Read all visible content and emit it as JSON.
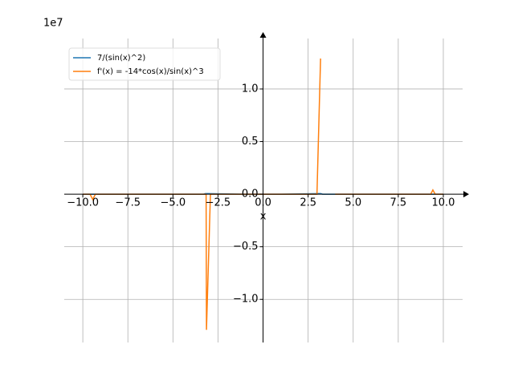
{
  "chart_data": {
    "type": "line",
    "offset_text": "1e7",
    "xlabel": "x",
    "xlim": [
      -11.03,
      11.07
    ],
    "ylim": [
      -14100000,
      14800000
    ],
    "xticks": [
      {
        "value": -10,
        "label": "−10.0"
      },
      {
        "value": -7.5,
        "label": "−7.5"
      },
      {
        "value": -5,
        "label": "−5.0"
      },
      {
        "value": -2.5,
        "label": "−2.5"
      },
      {
        "value": 0,
        "label": "0.0"
      },
      {
        "value": 2.5,
        "label": "2.5"
      },
      {
        "value": 5,
        "label": "5.0"
      },
      {
        "value": 7.5,
        "label": "7.5"
      },
      {
        "value": 10,
        "label": "10.0"
      }
    ],
    "yticks": [
      {
        "value": -10000000,
        "label": "−1.0"
      },
      {
        "value": -5000000,
        "label": "−0.5"
      },
      {
        "value": 0,
        "label": "0.0"
      },
      {
        "value": 5000000,
        "label": "0.5"
      },
      {
        "value": 10000000,
        "label": "1.0"
      }
    ],
    "grid": true,
    "legend": "upper-left",
    "series": [
      {
        "name": "7/(sin(x)^2)",
        "color": "#1f77b4",
        "x": [
          -10,
          -6,
          -3.3,
          -3.2,
          -3.1,
          -1,
          1,
          3.1,
          3.2,
          3.3,
          6,
          10
        ],
        "values": [
          0,
          0,
          0,
          50000,
          50000,
          0,
          0,
          50000,
          50000,
          0,
          0,
          0
        ]
      },
      {
        "name": "f'(x) = -14*cos(x)/sin(x)^3",
        "color": "#ff7f0e",
        "x": [
          -10,
          -9.6,
          -9.45,
          -9.3,
          -8,
          -6,
          -4,
          -3.16,
          -3.14,
          -2.92,
          -1,
          1,
          2.99,
          3.19,
          3.3,
          4,
          6,
          8,
          9.3,
          9.42,
          9.55,
          10
        ],
        "values": [
          0,
          0,
          -500000,
          0,
          0,
          0,
          0,
          0,
          -12900000,
          0,
          0,
          0,
          0,
          12900000,
          null,
          0,
          0,
          0,
          0,
          400000,
          0,
          0
        ]
      }
    ]
  }
}
